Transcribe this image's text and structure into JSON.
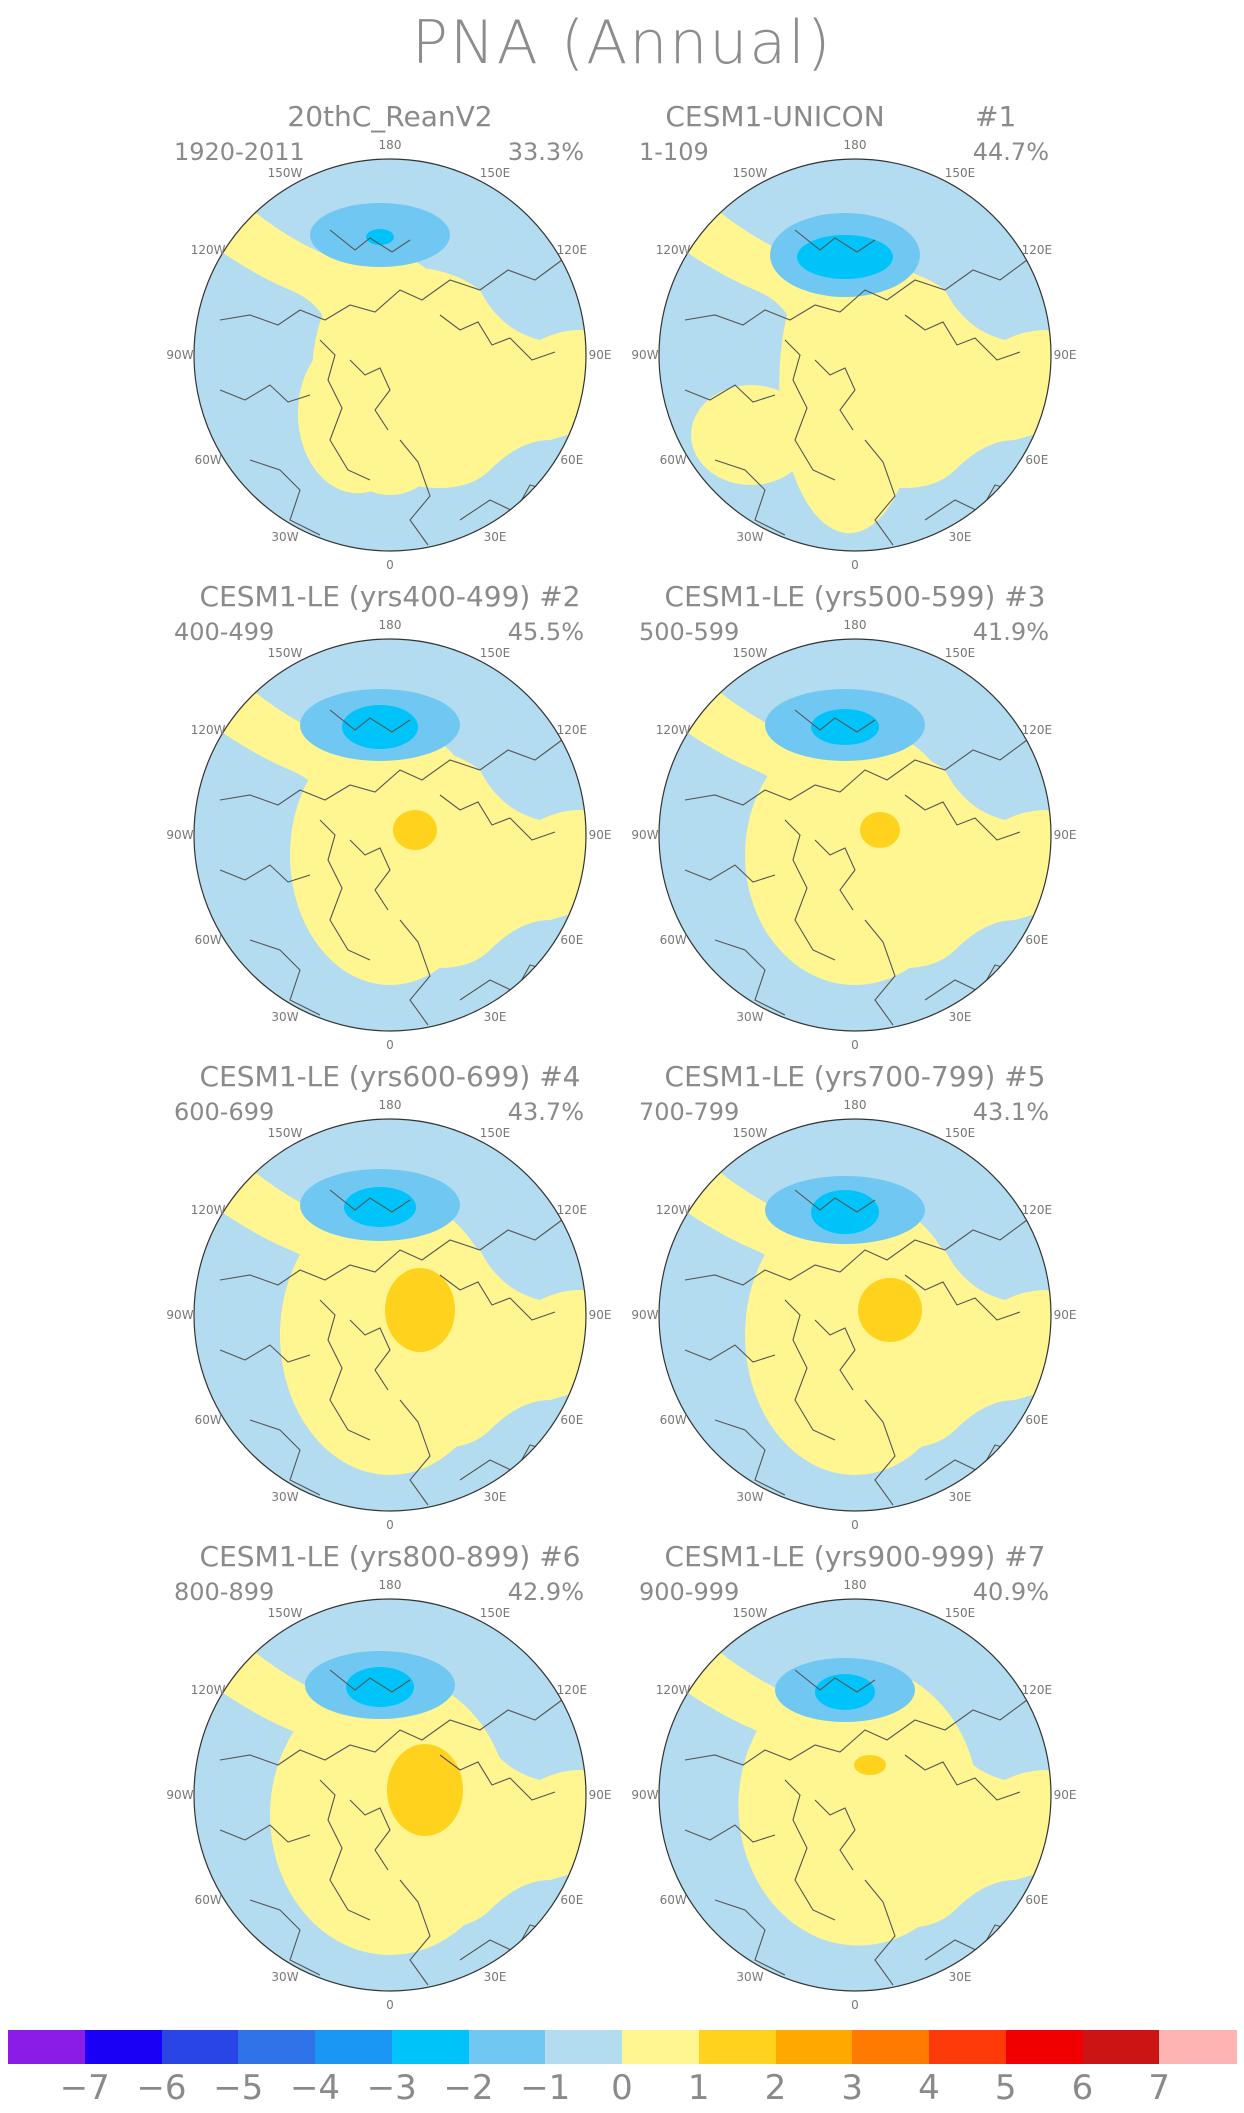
{
  "title": "PNA (Annual)",
  "lon_labels": [
    "180",
    "150E",
    "120E",
    "90E",
    "60E",
    "30E",
    "0",
    "30W",
    "60W",
    "90W",
    "120W",
    "150W"
  ],
  "panels": [
    {
      "title": "20thC_ReanV2",
      "tag": "",
      "years": "1920-2011",
      "pct": "33.3%"
    },
    {
      "title": "CESM1-UNICON",
      "tag": "#1",
      "years": "1-109",
      "pct": "44.7%"
    },
    {
      "title": "CESM1-LE (yrs400-499) #2",
      "tag": "",
      "years": "400-499",
      "pct": "45.5%"
    },
    {
      "title": "CESM1-LE (yrs500-599) #3",
      "tag": "",
      "years": "500-599",
      "pct": "41.9%"
    },
    {
      "title": "CESM1-LE (yrs600-699) #4",
      "tag": "",
      "years": "600-699",
      "pct": "43.7%"
    },
    {
      "title": "CESM1-LE (yrs700-799) #5",
      "tag": "",
      "years": "700-799",
      "pct": "43.1%"
    },
    {
      "title": "CESM1-LE (yrs800-899) #6",
      "tag": "",
      "years": "800-899",
      "pct": "42.9%"
    },
    {
      "title": "CESM1-LE (yrs900-999) #7",
      "tag": "",
      "years": "900-999",
      "pct": "40.9%"
    }
  ],
  "colorbar": {
    "labels": [
      "−7",
      "−6",
      "−5",
      "−4",
      "−3",
      "−2",
      "−1",
      "0",
      "1",
      "2",
      "3",
      "4",
      "5",
      "6",
      "7"
    ],
    "colors": [
      "#8b1ce8",
      "#1a00f5",
      "#2a45e6",
      "#3072e8",
      "#1a96f5",
      "#00c3fa",
      "#70c8f2",
      "#b3dcf0",
      "#fff691",
      "#ffd21e",
      "#ffa800",
      "#ff7a00",
      "#ff3a0a",
      "#f00000",
      "#cc1414",
      "#ffb4b4"
    ]
  },
  "colors": {
    "neg_weak": "#b3dcf0",
    "neg_mid": "#70c8f2",
    "neg_strong": "#00c3fa",
    "pos_weak": "#fff691",
    "pos_mid": "#ffd21e",
    "coast": "#555555"
  }
}
